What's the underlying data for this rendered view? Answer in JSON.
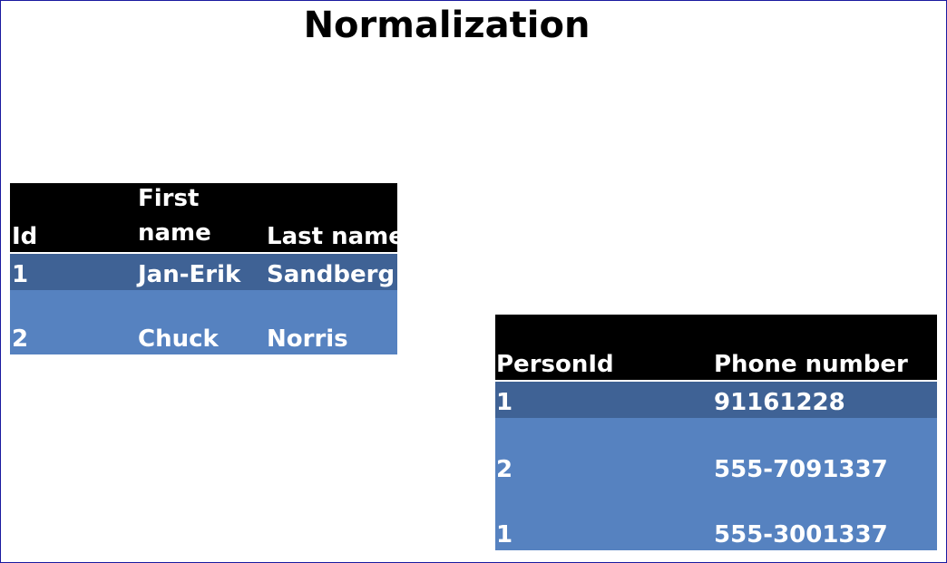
{
  "title": "Normalization",
  "person_table": {
    "headers": [
      "Id",
      "First\nname",
      "Last name"
    ],
    "rows": [
      [
        "1",
        "Jan-Erik",
        "Sandberg"
      ],
      [
        "2",
        "Chuck",
        "Norris"
      ]
    ]
  },
  "phone_table": {
    "headers": [
      "PersonId",
      "Phone number"
    ],
    "rows": [
      [
        "1",
        "91161228"
      ],
      [
        "2",
        "555-7091337"
      ],
      [
        "1",
        "555-3001337"
      ]
    ]
  },
  "colors": {
    "header_bg": "#000000",
    "row_dark": "#3f6295",
    "row_light": "#5682c0",
    "frame_border": "#1a1aa0"
  }
}
